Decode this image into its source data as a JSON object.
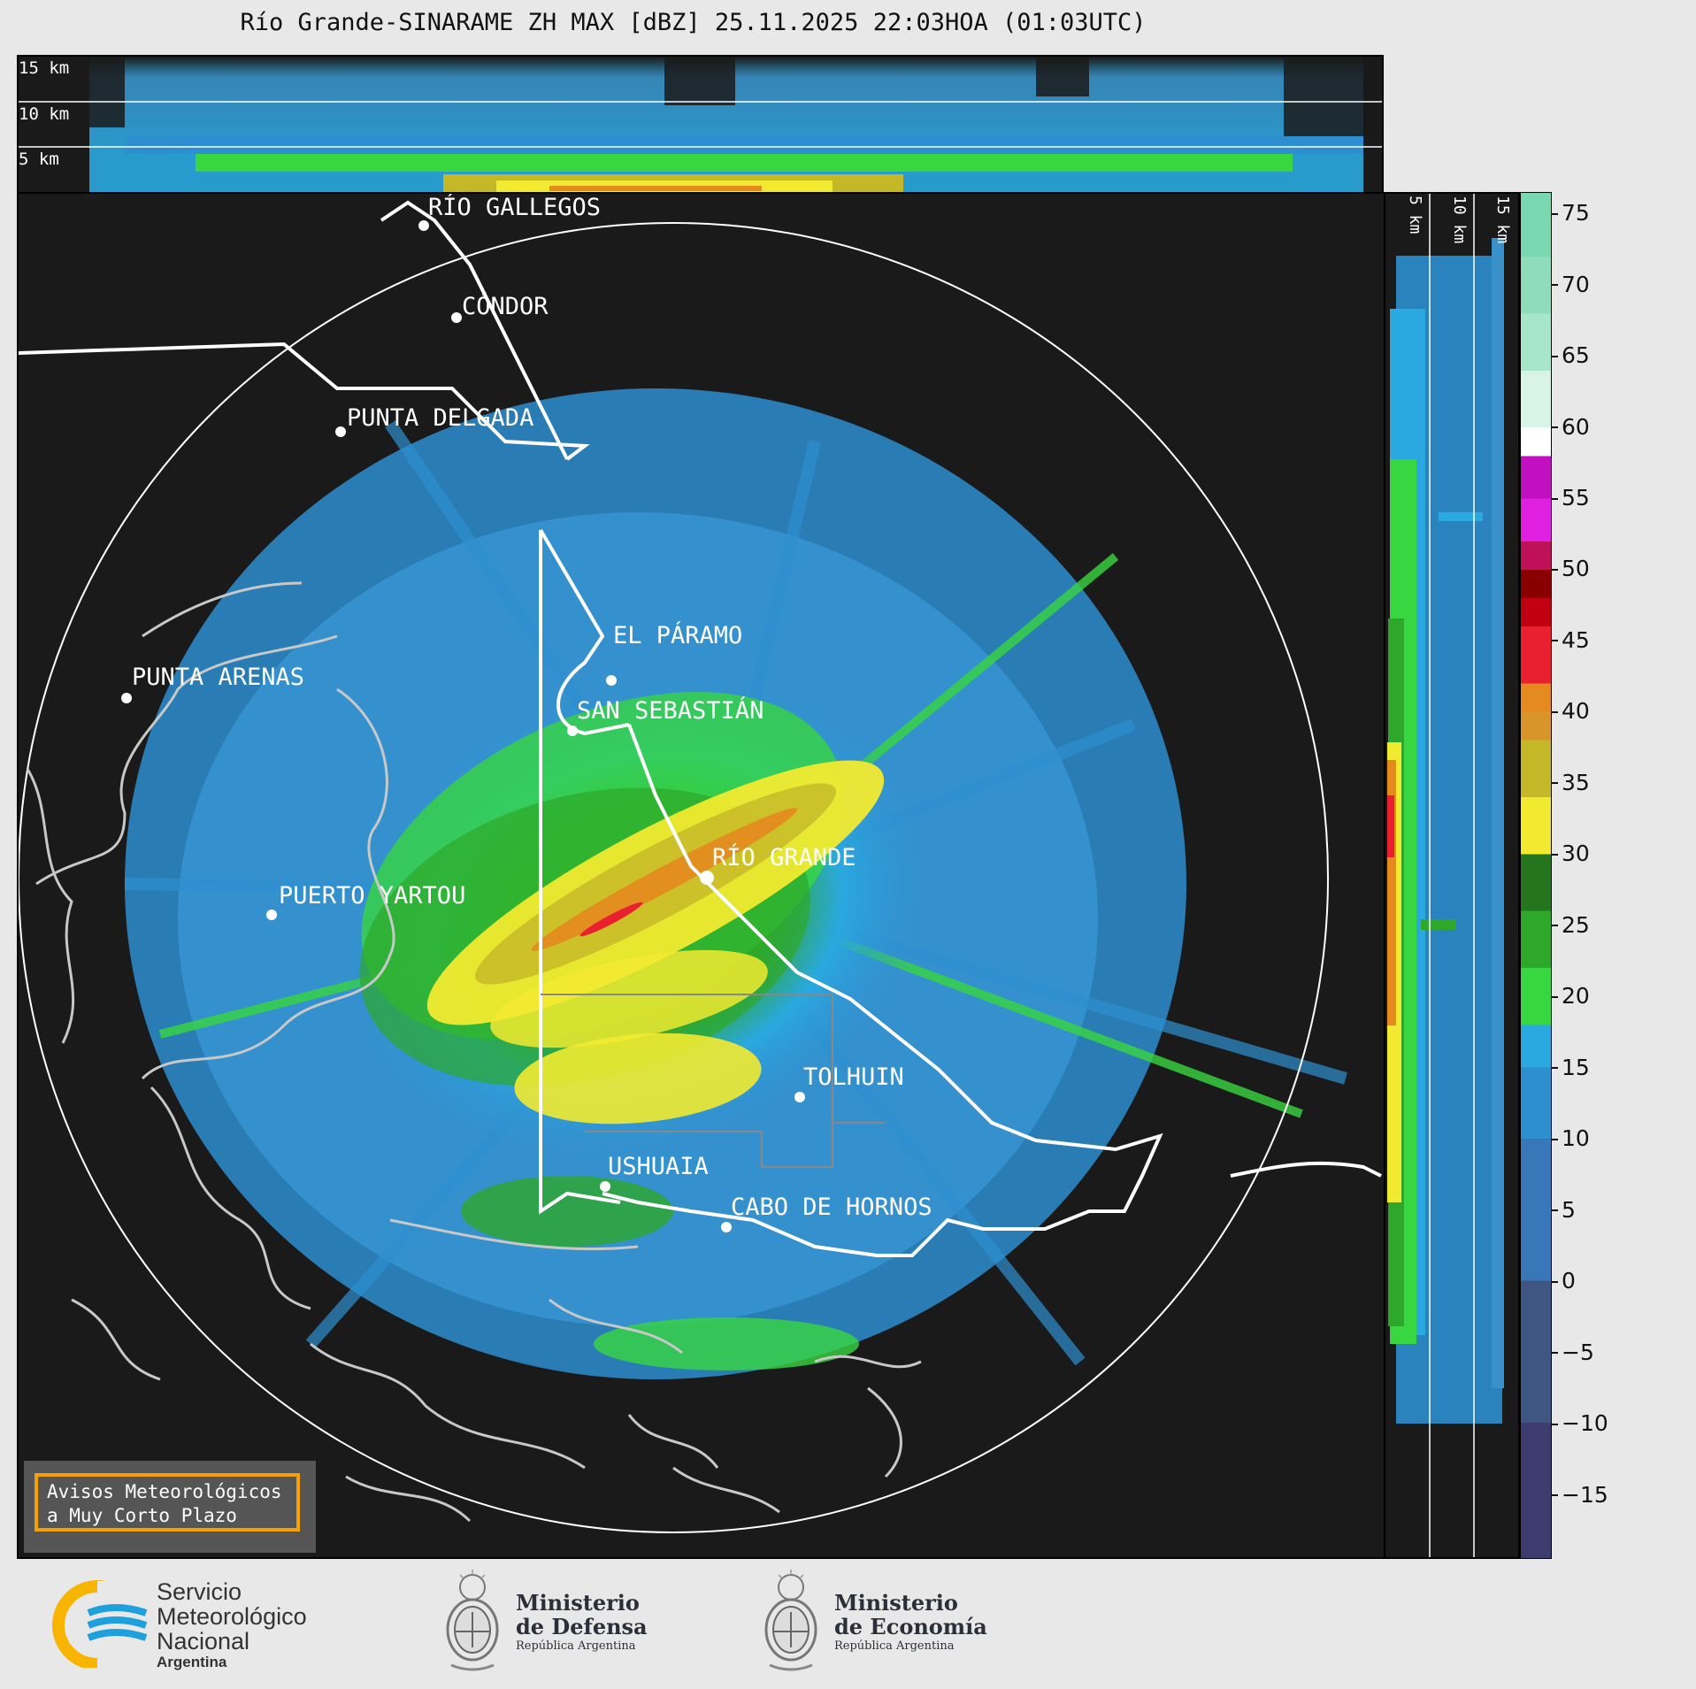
{
  "title": "Río Grande-SINARAME ZH MAX [dBZ] 25.11.2025 22:03HOA (01:03UTC)",
  "top_panel": {
    "labels": [
      "15 km",
      "10 km",
      "5 km"
    ]
  },
  "side_panel": {
    "labels": [
      "5 km",
      "10 km",
      "15 km"
    ]
  },
  "places": [
    {
      "name": "RÍO GALLEGOS"
    },
    {
      "name": "CÓNDOR"
    },
    {
      "name": "PUNTA DELGADA"
    },
    {
      "name": "PUNTA ARENAS"
    },
    {
      "name": "EL PÁRAMO"
    },
    {
      "name": "SAN SEBASTIÁN"
    },
    {
      "name": "RÍO GRANDE"
    },
    {
      "name": "PUERTO YARTOU"
    },
    {
      "name": "TOLHUIN"
    },
    {
      "name": "USHUAIA"
    },
    {
      "name": "CABO DE HORNOS"
    }
  ],
  "colorbar": {
    "unit": "dBZ",
    "ticks": [
      "75",
      "70",
      "65",
      "60",
      "55",
      "50",
      "45",
      "40",
      "35",
      "30",
      "25",
      "20",
      "15",
      "10",
      "5",
      "0",
      "−5",
      "−10",
      "−15"
    ],
    "range": [
      -19.5,
      76.5
    ],
    "stops": [
      {
        "from": -19.5,
        "color": "#3c3c6e"
      },
      {
        "from": -10,
        "color": "#405682"
      },
      {
        "from": 0,
        "color": "#3878b8"
      },
      {
        "from": 10,
        "color": "#2e8fd0"
      },
      {
        "from": 15,
        "color": "#2aa8e0"
      },
      {
        "from": 18,
        "color": "#38d640"
      },
      {
        "from": 22,
        "color": "#2ea82a"
      },
      {
        "from": 26,
        "color": "#25751e"
      },
      {
        "from": 30,
        "color": "#f2ea30"
      },
      {
        "from": 34,
        "color": "#c4b828"
      },
      {
        "from": 38,
        "color": "#d8962a"
      },
      {
        "from": 40,
        "color": "#e48a1e"
      },
      {
        "from": 42,
        "color": "#e82030"
      },
      {
        "from": 46,
        "color": "#c00010"
      },
      {
        "from": 48,
        "color": "#8a0000"
      },
      {
        "from": 50,
        "color": "#c0105a"
      },
      {
        "from": 52,
        "color": "#e020e0"
      },
      {
        "from": 55,
        "color": "#c010c0"
      },
      {
        "from": 58,
        "color": "#ffffff"
      },
      {
        "from": 60,
        "color": "#d8f4e8"
      },
      {
        "from": 64,
        "color": "#a8e6cc"
      },
      {
        "from": 68,
        "color": "#8edcbc"
      },
      {
        "from": 72,
        "color": "#7ad8b0"
      }
    ]
  },
  "warning_box": {
    "line1": "Avisos Meteorológicos",
    "line2": "a Muy Corto Plazo"
  },
  "logos": {
    "smn": {
      "line1": "Servicio",
      "line2": "Meteorológico",
      "line3": "Nacional",
      "line4": "Argentina"
    },
    "defensa": {
      "line1": "Ministerio",
      "line2": "de Defensa",
      "line3": "República Argentina"
    },
    "economia": {
      "line1": "Ministerio",
      "line2": "de Economía",
      "line3": "República Argentina"
    }
  },
  "colors": {
    "background": "#e8e8e8",
    "panel": "#1a1a1a",
    "accent": "#f59f00",
    "smn_blue": "#1ea0dc",
    "smn_yellow": "#f7b500"
  }
}
